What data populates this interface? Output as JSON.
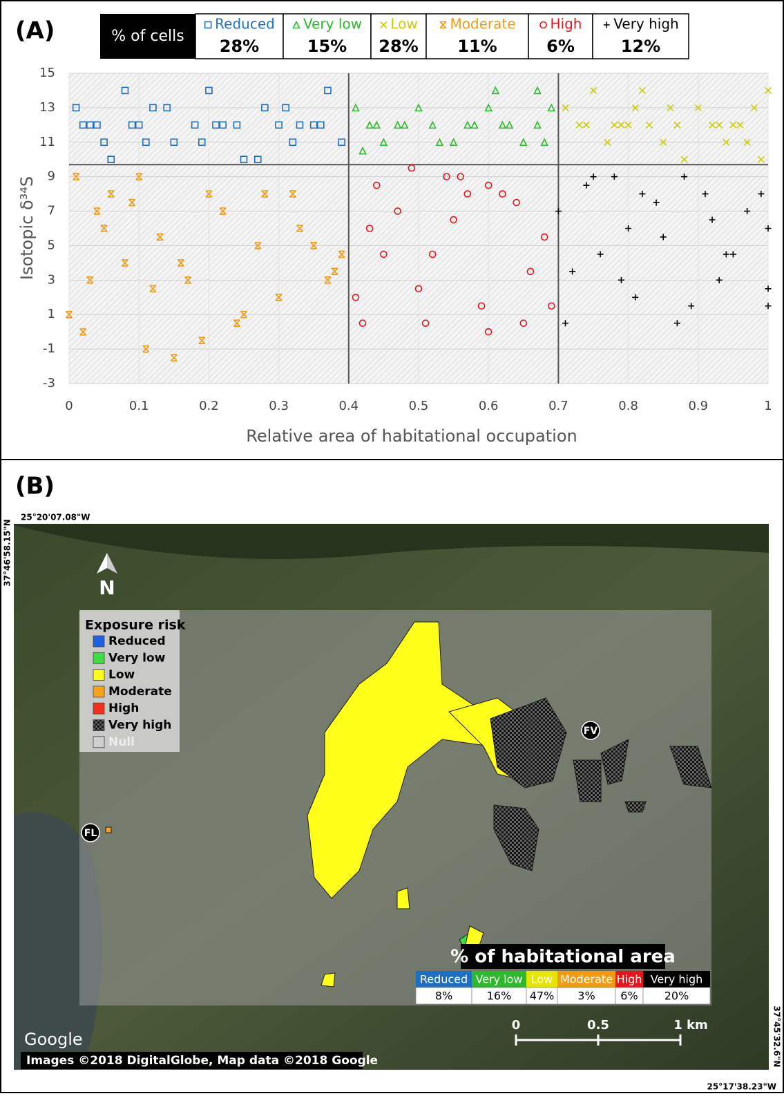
{
  "chart_data": {
    "type": "scatter",
    "panel_label": "(A)",
    "legend_title": "% of cells",
    "x_label": "Relative area of habitational occupation",
    "y_label": "Isotopic δ³⁴S",
    "xlim": [
      0,
      1
    ],
    "xticks": [
      0,
      0.1,
      0.2,
      0.3,
      0.4,
      0.5,
      0.6,
      0.7,
      0.8,
      0.9,
      1
    ],
    "ylim": [
      -3,
      15
    ],
    "yticks": [
      -3,
      -1,
      1,
      3,
      5,
      7,
      9,
      11,
      13,
      15
    ],
    "grid": true,
    "reference_lines": {
      "x": [
        0.4,
        0.7
      ],
      "y": [
        9.7
      ]
    },
    "series": [
      {
        "name": "Reduced",
        "share": "28%",
        "color": "#1f6fc1",
        "marker": "square",
        "x": [
          0.01,
          0.03,
          0.05,
          0.08,
          0.1,
          0.12,
          0.15,
          0.18,
          0.2,
          0.22,
          0.25,
          0.28,
          0.3,
          0.32,
          0.35,
          0.37,
          0.39,
          0.02,
          0.06,
          0.09,
          0.14,
          0.19,
          0.24,
          0.27,
          0.31,
          0.36,
          0.04,
          0.11,
          0.21,
          0.33
        ],
        "values": [
          13,
          12,
          11,
          14,
          12,
          13,
          11,
          12,
          14,
          12,
          10,
          13,
          12,
          11,
          12,
          14,
          11,
          12,
          10,
          12,
          13,
          11,
          12,
          10,
          13,
          12,
          12,
          11,
          12,
          12
        ]
      },
      {
        "name": "Very low",
        "share": "15%",
        "color": "#2db82d",
        "marker": "triangle",
        "x": [
          0.41,
          0.43,
          0.45,
          0.47,
          0.5,
          0.52,
          0.55,
          0.57,
          0.6,
          0.62,
          0.65,
          0.67,
          0.69,
          0.42,
          0.48,
          0.53,
          0.58,
          0.63,
          0.68,
          0.44,
          0.61,
          0.67
        ],
        "values": [
          13,
          12,
          11,
          12,
          13,
          12,
          11,
          12,
          13,
          12,
          11,
          12,
          13,
          10.5,
          12,
          11,
          12,
          12,
          11,
          12,
          14,
          14
        ]
      },
      {
        "name": "Low",
        "share": "28%",
        "color": "#cccc00",
        "marker": "x",
        "x": [
          0.71,
          0.73,
          0.75,
          0.77,
          0.79,
          0.81,
          0.83,
          0.85,
          0.87,
          0.9,
          0.92,
          0.94,
          0.96,
          0.98,
          1.0,
          0.74,
          0.78,
          0.82,
          0.88,
          0.93,
          0.97,
          0.8,
          0.86,
          0.95,
          0.99
        ],
        "values": [
          13,
          12,
          14,
          11,
          12,
          13,
          12,
          11,
          12,
          13,
          12,
          11,
          12,
          13,
          14,
          12,
          12,
          14,
          10,
          12,
          11,
          12,
          13,
          12,
          10
        ]
      },
      {
        "name": "Moderate",
        "share": "11%",
        "color": "#f29b11",
        "marker": "asterisk",
        "x": [
          0,
          0.01,
          0.02,
          0.03,
          0.05,
          0.06,
          0.08,
          0.1,
          0.11,
          0.13,
          0.15,
          0.17,
          0.2,
          0.22,
          0.25,
          0.27,
          0.3,
          0.32,
          0.35,
          0.37,
          0.39,
          0.04,
          0.09,
          0.16,
          0.24,
          0.28,
          0.33,
          0.38,
          0.12,
          0.19
        ],
        "values": [
          1,
          9,
          0,
          3,
          6,
          8,
          4,
          9,
          -1,
          5.5,
          -1.5,
          3,
          8,
          7,
          1,
          5,
          2,
          8,
          5,
          3,
          4.5,
          7,
          7.5,
          4,
          0.5,
          8,
          6,
          3.5,
          2.5,
          -0.5
        ]
      },
      {
        "name": "High",
        "share": "6%",
        "color": "#e8141c",
        "marker": "circle",
        "x": [
          0.41,
          0.42,
          0.44,
          0.45,
          0.47,
          0.49,
          0.5,
          0.52,
          0.54,
          0.55,
          0.57,
          0.59,
          0.6,
          0.62,
          0.64,
          0.66,
          0.68,
          0.69,
          0.43,
          0.51,
          0.56,
          0.6,
          0.65
        ],
        "values": [
          2,
          0.5,
          8.5,
          4.5,
          7,
          9.5,
          2.5,
          4.5,
          9,
          6.5,
          8,
          1.5,
          0,
          8,
          7.5,
          3.5,
          5.5,
          1.5,
          6,
          0.5,
          9,
          8.5,
          0.5
        ]
      },
      {
        "name": "Very high",
        "share": "12%",
        "color": "#000000",
        "marker": "plus",
        "x": [
          0.7,
          0.72,
          0.74,
          0.76,
          0.78,
          0.8,
          0.82,
          0.85,
          0.87,
          0.89,
          0.91,
          0.93,
          0.95,
          0.97,
          1.0,
          1.0,
          1.0,
          0.71,
          0.75,
          0.79,
          0.84,
          0.88,
          0.94,
          0.99,
          0.92,
          0.81
        ],
        "values": [
          7,
          3.5,
          8.5,
          4.5,
          9,
          6,
          8,
          5.5,
          0.5,
          1.5,
          8,
          3,
          4.5,
          7,
          2.5,
          6,
          1.5,
          0.5,
          9,
          3,
          7.5,
          9,
          4.5,
          8,
          6.5,
          2
        ]
      }
    ]
  },
  "panel_b": {
    "label": "(B)",
    "north": "N",
    "places": [
      "FV",
      "FL"
    ],
    "coordinates": {
      "top_left": "25°20'07.08\"W",
      "left": "37°46'58.15\"N",
      "bottom_right": "25°17'38.23\"W",
      "right": "37°45'32.6\"N"
    },
    "legend": {
      "title": "Exposure risk",
      "items": [
        {
          "name": "Reduced",
          "color": "#1f5fe0"
        },
        {
          "name": "Very low",
          "color": "#3ce03c"
        },
        {
          "name": "Low",
          "color": "#ffff1a"
        },
        {
          "name": "Moderate",
          "color": "#f7a21b"
        },
        {
          "name": "High",
          "color": "#f0301e"
        },
        {
          "name": "Very high",
          "color": "#000000"
        },
        {
          "name": "Null",
          "color": "#cfcfcf"
        }
      ]
    },
    "area_table": {
      "title": "% of habitational area",
      "columns": [
        {
          "name": "Reduced",
          "value": "8%",
          "color": "#1f6fc1"
        },
        {
          "name": "Very low",
          "value": "16%",
          "color": "#2db82d"
        },
        {
          "name": "Low",
          "value": "47%",
          "color": "#e6e600"
        },
        {
          "name": "Moderate",
          "value": "3%",
          "color": "#f29b11"
        },
        {
          "name": "High",
          "value": "6%",
          "color": "#e8141c"
        },
        {
          "name": "Very high",
          "value": "20%",
          "color": "#000000"
        }
      ]
    },
    "scale": {
      "labels": [
        "0",
        "0.5",
        "1 km"
      ]
    },
    "attribution": {
      "logo": "Google",
      "credits": "Images ©2018 DigitalGlobe, Map data ©2018 Google"
    }
  }
}
